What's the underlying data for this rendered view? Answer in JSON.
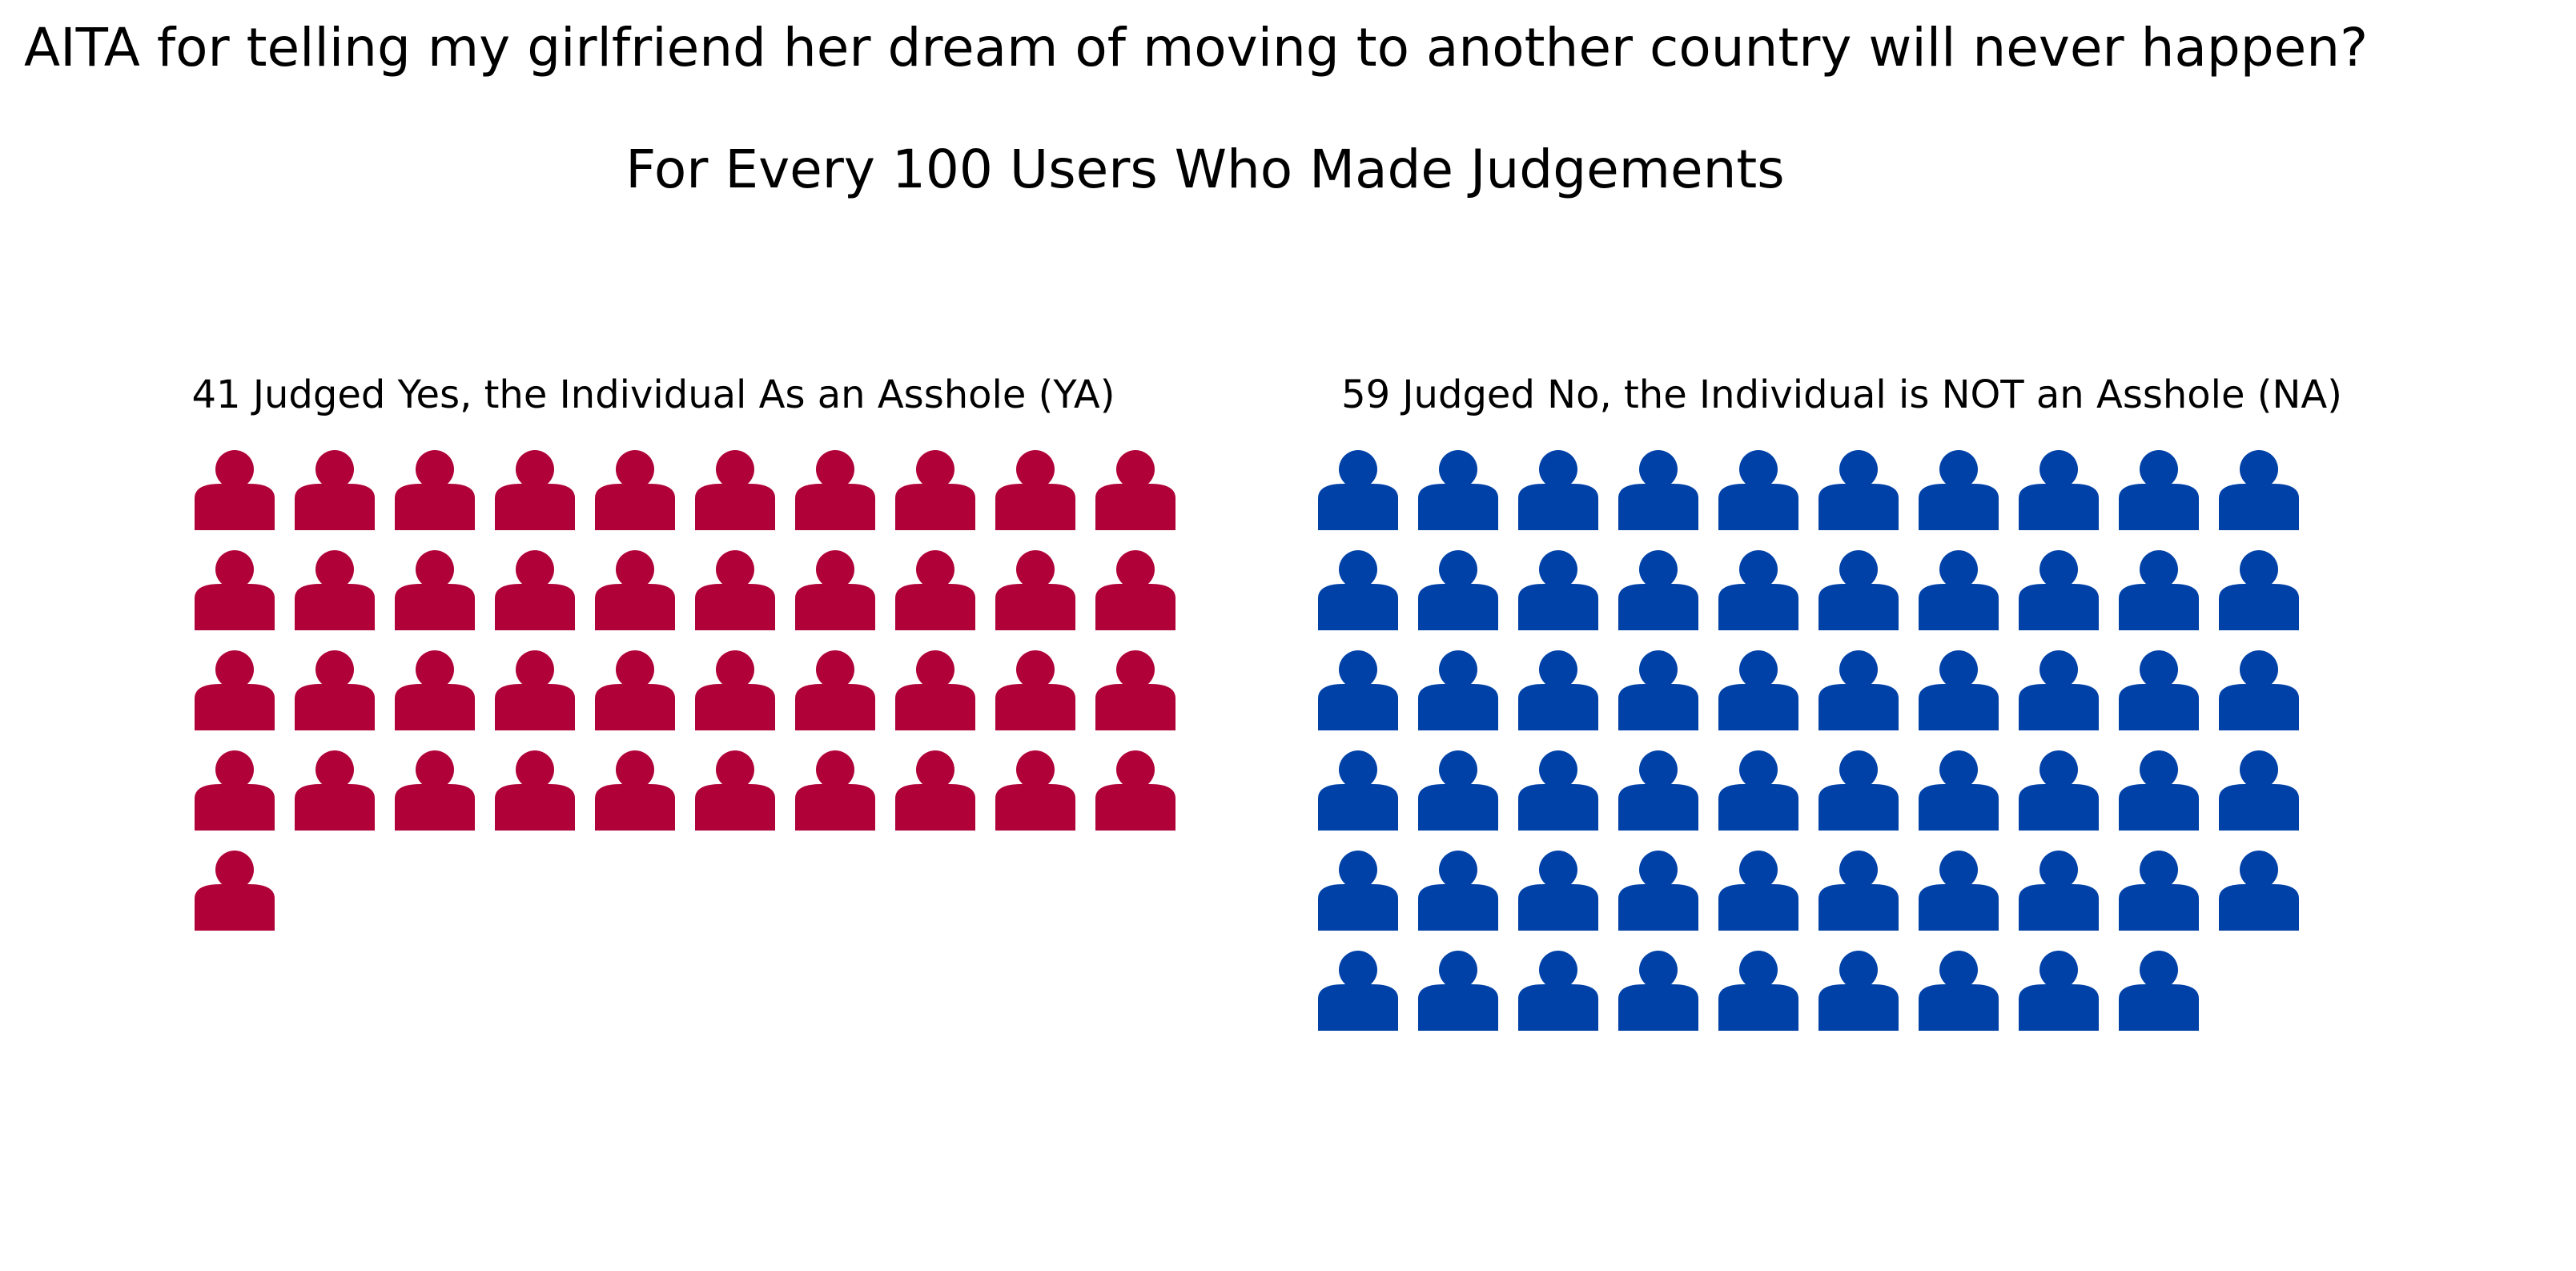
{
  "title": "AITA for telling my girlfriend her dream of moving to another country will never happen?",
  "subtitle": "For Every 100 Users Who Made Judgements",
  "chart_data": [
    {
      "type": "pictogram",
      "title": "41 Judged Yes, the Individual As an Asshole (YA)",
      "category": "YA",
      "value": 41,
      "total": 100,
      "icons_per_row": 10,
      "icon": "person-icon",
      "color": "#b00238"
    },
    {
      "type": "pictogram",
      "title": "59 Judged No, the Individual is NOT an Asshole (NA)",
      "category": "NA",
      "value": 59,
      "total": 100,
      "icons_per_row": 10,
      "icon": "person-icon",
      "color": "#0041a8"
    }
  ]
}
